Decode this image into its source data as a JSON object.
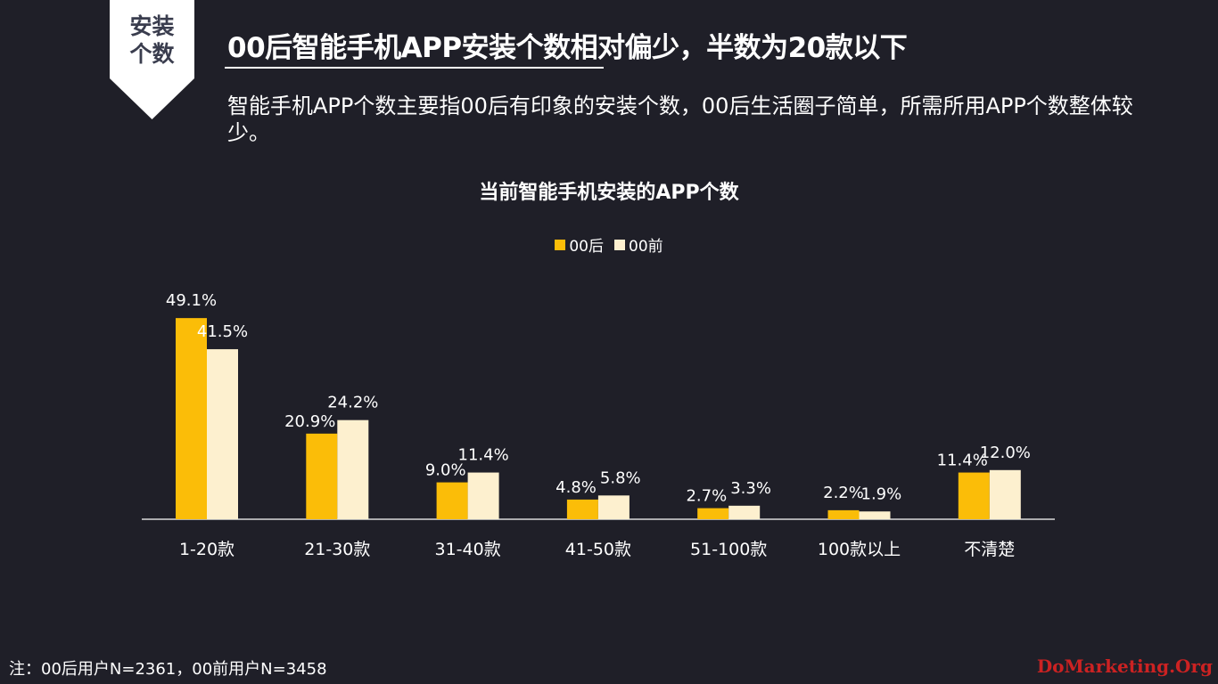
{
  "badge": {
    "line1": "安装",
    "line2": "个数"
  },
  "header": {
    "title": "00后智能手机APP安装个数相对偏少，半数为20款以下",
    "subtitle": "智能手机APP个数主要指00后有印象的安装个数，00后生活圈子简单，所需所用APP个数整体较少。"
  },
  "colors": {
    "accent": "#fbbd08",
    "secondary": "#fdf0cf",
    "badge_bg": "#ffffff",
    "background": "#1f1f28"
  },
  "chart_data": {
    "type": "bar",
    "title": "当前智能手机安装的APP个数",
    "categories": [
      "1-20款",
      "21-30款",
      "31-40款",
      "41-50款",
      "51-100款",
      "100款以上",
      "不清楚"
    ],
    "series": [
      {
        "name": "00后",
        "values": [
          49.1,
          20.9,
          9.0,
          4.8,
          2.7,
          2.2,
          11.4
        ],
        "labels": [
          "49.1%",
          "20.9%",
          "9.0%",
          "4.8%",
          "2.7%",
          "2.2%",
          "11.4%"
        ],
        "color": "#fbbd08"
      },
      {
        "name": "00前",
        "values": [
          41.5,
          24.2,
          11.4,
          5.8,
          3.3,
          1.9,
          12.0
        ],
        "labels": [
          "41.5%",
          "24.2%",
          "11.4%",
          "5.8%",
          "3.3%",
          "1.9%",
          "12.0%"
        ],
        "color": "#fdf0cf"
      }
    ],
    "ylim": [
      0,
      50
    ],
    "legend": "top-center",
    "grid": false
  },
  "footer": {
    "note": "注：00后用户N=2361，00前用户N=3458",
    "watermark": "DoMarketing.Org"
  }
}
